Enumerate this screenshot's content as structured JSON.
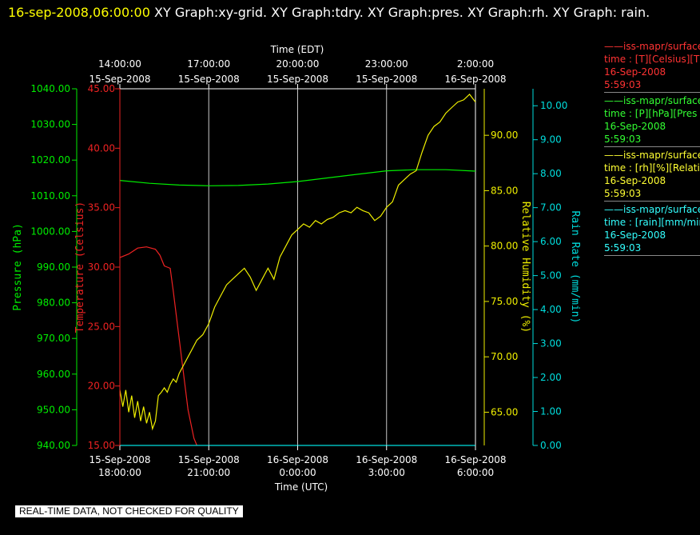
{
  "header": {
    "date": "16-sep-2008,06:00:00",
    "graphs": "  XY Graph:xy-grid.  XY Graph:tdry.  XY Graph:pres.  XY Graph:rh.  XY Graph: rain."
  },
  "disclaimer": "REAL-TIME DATA, NOT CHECKED FOR QUALITY",
  "legend": [
    {
      "color": "#ff3333",
      "lines": [
        "——iss-mapr/surface",
        "time : [T][Celsius][T",
        "16-Sep-2008",
        "5:59:03"
      ]
    },
    {
      "color": "#33ff33",
      "lines": [
        "——iss-mapr/surface",
        "time : [P][hPa][Pres",
        "16-Sep-2008",
        "5:59:03"
      ]
    },
    {
      "color": "#ffff33",
      "lines": [
        "——iss-mapr/surface",
        "time : [rh][%][Relati",
        "16-Sep-2008",
        "5:59:03"
      ]
    },
    {
      "color": "#33ffff",
      "lines": [
        "——iss-mapr/surface",
        "time : [rain][mm/min",
        "16-Sep-2008",
        "5:59:03"
      ]
    }
  ],
  "chart_data": {
    "type": "line",
    "grid": true,
    "top_axis": {
      "title": "Time (EDT)",
      "ticks": [
        {
          "line1": "14:00:00",
          "line2": "15-Sep-2008"
        },
        {
          "line1": "17:00:00",
          "line2": "15-Sep-2008"
        },
        {
          "line1": "20:00:00",
          "line2": "15-Sep-2008"
        },
        {
          "line1": "23:00:00",
          "line2": "15-Sep-2008"
        },
        {
          "line1": "2:00:00",
          "line2": "16-Sep-2008"
        }
      ]
    },
    "bottom_axis": {
      "title": "Time (UTC)",
      "ticks": [
        {
          "line1": "15-Sep-2008",
          "line2": "18:00:00"
        },
        {
          "line1": "15-Sep-2008",
          "line2": "21:00:00"
        },
        {
          "line1": "16-Sep-2008",
          "line2": "0:00:00"
        },
        {
          "line1": "16-Sep-2008",
          "line2": "3:00:00"
        },
        {
          "line1": "16-Sep-2008",
          "line2": "6:00:00"
        }
      ]
    },
    "x_range_hours_utc": [
      0,
      12
    ],
    "axes": {
      "pressure": {
        "title": "Pressure (hPa)",
        "color": "#00ee00",
        "range": [
          940,
          1040
        ],
        "ticks": [
          "940.00",
          "950.00",
          "960.00",
          "970.00",
          "980.00",
          "990.00",
          "1000.00",
          "1010.00",
          "1020.00",
          "1030.00",
          "1040.00"
        ]
      },
      "temperature": {
        "title": "Temperature (Celsius)",
        "color": "#ee2222",
        "range": [
          15,
          45
        ],
        "ticks": [
          "15.00",
          "20.00",
          "25.00",
          "30.00",
          "35.00",
          "40.00",
          "45.00"
        ]
      },
      "humidity": {
        "title": "Relative Humidity (%)",
        "color": "#eeee00",
        "range": [
          62,
          94.2
        ],
        "ticks": [
          "65.00",
          "70.00",
          "75.00",
          "80.00",
          "85.00",
          "90.00"
        ]
      },
      "rain": {
        "title": "Rain Rate (mm/min)",
        "color": "#00dddd",
        "range": [
          0,
          10.5
        ],
        "ticks": [
          "0.00",
          "1.00",
          "2.00",
          "3.00",
          "4.00",
          "5.00",
          "6.00",
          "7.00",
          "8.00",
          "9.00",
          "10.00"
        ]
      }
    },
    "series": [
      {
        "axis": "temperature",
        "x": [
          0,
          0.3,
          0.6,
          0.9,
          1.2,
          1.35,
          1.5,
          1.6,
          1.7,
          1.8,
          1.9,
          2.0,
          2.1,
          2.2,
          2.3,
          2.5,
          2.6
        ],
        "values": [
          30.8,
          31.1,
          31.6,
          31.7,
          31.5,
          31.0,
          30.1,
          30.0,
          29.9,
          28.0,
          26.0,
          24.0,
          22.0,
          20.0,
          18.0,
          15.6,
          15.0
        ]
      },
      {
        "axis": "pressure",
        "x": [
          0,
          1,
          2,
          3,
          4,
          5,
          6,
          7,
          8,
          9,
          10,
          11,
          12
        ],
        "values": [
          1014.3,
          1013.5,
          1013.0,
          1012.8,
          1012.9,
          1013.3,
          1014.0,
          1015.0,
          1016.0,
          1017.0,
          1017.3,
          1017.3,
          1016.9
        ]
      },
      {
        "axis": "rain",
        "x": [
          0,
          12
        ],
        "values": [
          0.0,
          0.0
        ]
      },
      {
        "axis": "humidity",
        "x": [
          0,
          0.1,
          0.2,
          0.3,
          0.4,
          0.5,
          0.6,
          0.7,
          0.8,
          0.9,
          1.0,
          1.1,
          1.2,
          1.3,
          1.4,
          1.5,
          1.6,
          1.7,
          1.8,
          1.9,
          2.0,
          2.2,
          2.4,
          2.6,
          2.8,
          3.0,
          3.2,
          3.4,
          3.6,
          3.8,
          4.0,
          4.2,
          4.4,
          4.6,
          4.8,
          5.0,
          5.2,
          5.4,
          5.6,
          5.8,
          6.0,
          6.2,
          6.4,
          6.6,
          6.8,
          7.0,
          7.2,
          7.4,
          7.6,
          7.8,
          8.0,
          8.2,
          8.4,
          8.6,
          8.8,
          9.0,
          9.2,
          9.4,
          9.6,
          9.8,
          10.0,
          10.2,
          10.4,
          10.6,
          10.8,
          11.0,
          11.2,
          11.4,
          11.6,
          11.8,
          12.0
        ],
        "values": [
          67.0,
          65.5,
          67.0,
          65.0,
          66.5,
          64.5,
          66.0,
          64.2,
          65.5,
          64.0,
          65.0,
          63.5,
          64.2,
          66.5,
          66.8,
          67.2,
          66.8,
          67.5,
          68.0,
          67.7,
          68.5,
          69.5,
          70.5,
          71.5,
          72.0,
          73.0,
          74.5,
          75.5,
          76.5,
          77.0,
          77.5,
          78.0,
          77.2,
          76.0,
          77.0,
          78.0,
          77.0,
          79.0,
          80.0,
          81.0,
          81.5,
          82.0,
          81.7,
          82.3,
          82.0,
          82.4,
          82.6,
          83.0,
          83.2,
          83.0,
          83.5,
          83.2,
          83.0,
          82.3,
          82.7,
          83.5,
          84.0,
          85.5,
          86.0,
          86.5,
          86.8,
          88.5,
          90.0,
          90.8,
          91.2,
          92.0,
          92.5,
          93.0,
          93.2,
          93.7,
          93.0
        ]
      }
    ]
  }
}
